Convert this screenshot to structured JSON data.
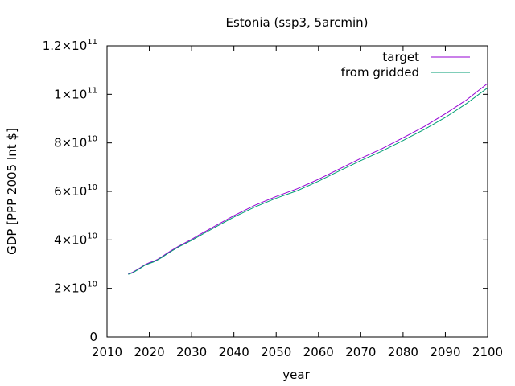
{
  "chart_data": {
    "type": "line",
    "title": "Estonia (ssp3, 5arcmin)",
    "xlabel": "year",
    "ylabel": "GDP [PPP 2005 Int $]",
    "xlim": [
      2010,
      2100
    ],
    "ylim": [
      0,
      120000000000
    ],
    "x_ticks": [
      2010,
      2020,
      2030,
      2040,
      2050,
      2060,
      2070,
      2080,
      2090,
      2100
    ],
    "x_tick_labels": [
      "2010",
      "2020",
      "2030",
      "2040",
      "2050",
      "2060",
      "2070",
      "2080",
      "2090",
      "2100"
    ],
    "y_ticks": [
      {
        "value": 0,
        "mant": "0",
        "exp": ""
      },
      {
        "value": 20000000000,
        "mant": "2×10",
        "exp": "10"
      },
      {
        "value": 40000000000,
        "mant": "4×10",
        "exp": "10"
      },
      {
        "value": 60000000000,
        "mant": "6×10",
        "exp": "10"
      },
      {
        "value": 80000000000,
        "mant": "8×10",
        "exp": "10"
      },
      {
        "value": 100000000000,
        "mant": "1×10",
        "exp": "11"
      },
      {
        "value": 120000000000,
        "mant": "1.2×10",
        "exp": "11"
      }
    ],
    "grid": false,
    "legend_position": "top-right",
    "x": [
      2015,
      2016,
      2017,
      2018,
      2019,
      2020,
      2021,
      2022,
      2023,
      2024,
      2025,
      2027,
      2030,
      2032,
      2035,
      2040,
      2045,
      2050,
      2055,
      2060,
      2065,
      2070,
      2075,
      2080,
      2085,
      2090,
      2095,
      2100
    ],
    "series": [
      {
        "name": "target",
        "color": "#9400d3",
        "values": [
          26000000000,
          26600000000,
          27600000000,
          28700000000,
          29800000000,
          30600000000,
          31200000000,
          32000000000,
          33100000000,
          34300000000,
          35400000000,
          37500000000,
          40200000000,
          42300000000,
          45200000000,
          50000000000,
          54300000000,
          57900000000,
          61100000000,
          65000000000,
          69300000000,
          73600000000,
          77600000000,
          82100000000,
          86700000000,
          92000000000,
          97700000000,
          104500000000
        ]
      },
      {
        "name": "from gridded",
        "color": "#009e73",
        "values": [
          25800000000,
          26400000000,
          27400000000,
          28500000000,
          29600000000,
          30300000000,
          30900000000,
          31800000000,
          32800000000,
          34000000000,
          35100000000,
          37200000000,
          39800000000,
          41800000000,
          44700000000,
          49400000000,
          53600000000,
          57200000000,
          60300000000,
          64200000000,
          68500000000,
          72700000000,
          76600000000,
          81000000000,
          85500000000,
          90500000000,
          96200000000,
          102700000000
        ]
      }
    ]
  }
}
